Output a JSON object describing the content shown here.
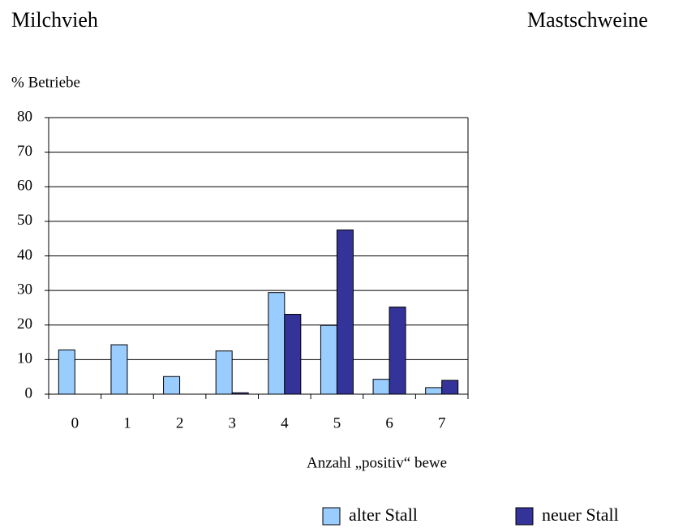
{
  "chart_data": {
    "type": "bar",
    "title": "Milchvieh",
    "annotations": [
      "Mastschweine"
    ],
    "ylabel": "% Betriebe",
    "xlabel": "Anzahl „positiv“ bewe",
    "categories": [
      "0",
      "1",
      "2",
      "3",
      "4",
      "5",
      "6",
      "7"
    ],
    "series": [
      {
        "name": "alter Stall",
        "color": "#99ccff",
        "values": [
          12.8,
          14.3,
          5.1,
          12.5,
          29.4,
          19.9,
          4.3,
          1.9
        ]
      },
      {
        "name": "neuer Stall",
        "color": "#333399",
        "values": [
          0,
          0,
          0,
          0.4,
          23.1,
          47.5,
          25.2,
          4.0
        ]
      }
    ],
    "ylim": [
      0,
      80
    ],
    "yticks": [
      0,
      10,
      20,
      30,
      40,
      50,
      60,
      70,
      80
    ],
    "grid": true,
    "legend": "bottom"
  }
}
